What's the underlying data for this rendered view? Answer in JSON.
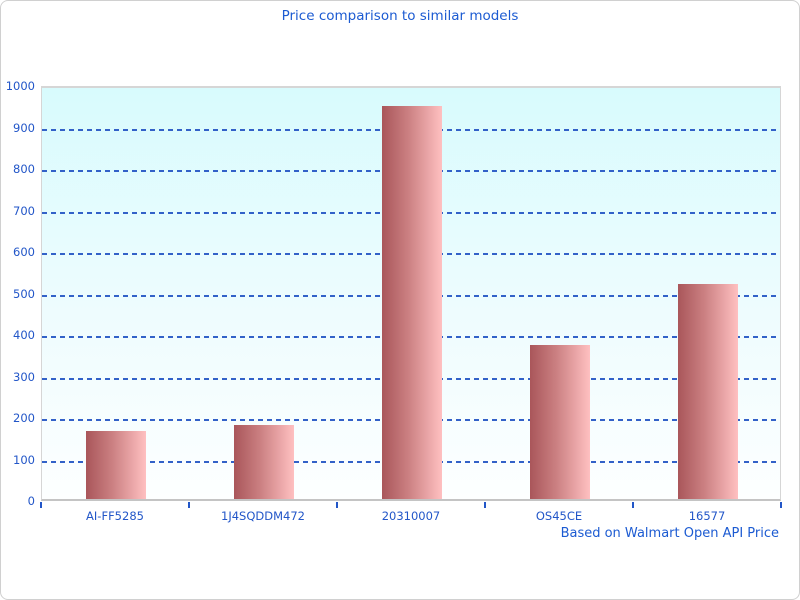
{
  "chart_data": {
    "type": "bar",
    "title": "Price comparison to similar models",
    "footer": "Based on Walmart Open API Price",
    "categories": [
      "AI-FF5285",
      "1J4SQDDM472",
      "20310007",
      "OS45CE",
      "16577"
    ],
    "values": [
      165,
      178,
      948,
      370,
      517
    ],
    "xlabel": "",
    "ylabel": "",
    "ylim": [
      0,
      1000
    ],
    "ytick_step": 100,
    "grid": "horizontal-dashed",
    "legend": "none",
    "colors": {
      "accent": "#1c5bd2",
      "axis-text": "#2256c8",
      "grid": "#3261c8",
      "bar-dark": "#a9565a",
      "bar-mid": "#cc8183",
      "bar-light": "#ffc0c1",
      "plot-top": "#d8fbfd",
      "plot-bottom": "#fdffff",
      "plot-border": "#d6d6d6",
      "frame-border": "#d0d0d0"
    }
  }
}
